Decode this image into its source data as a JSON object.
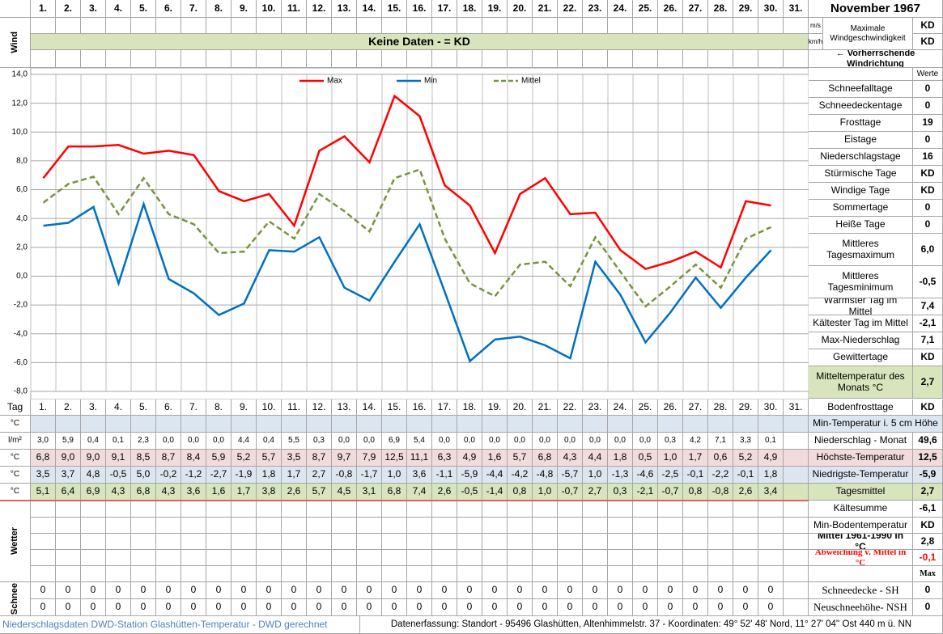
{
  "header": {
    "title": "November 1967",
    "day_label": "Tag"
  },
  "wind": {
    "label": "Wind",
    "banner": "Keine Daten -  = KD",
    "units": [
      "m/s",
      "km/h"
    ],
    "max_label": "Maximale Windgeschwindigkeit",
    "max_values": [
      "KD",
      "KD"
    ],
    "direction": "← Vorherrschende Windrichtung"
  },
  "chart_data": {
    "type": "line",
    "categories": [
      "1.",
      "2.",
      "3.",
      "4.",
      "5.",
      "6.",
      "7.",
      "8.",
      "9.",
      "10.",
      "11.",
      "12.",
      "13.",
      "14.",
      "15.",
      "16.",
      "17.",
      "18.",
      "19.",
      "20.",
      "21.",
      "22.",
      "23.",
      "24.",
      "25.",
      "26.",
      "27.",
      "28.",
      "29.",
      "30.",
      "31."
    ],
    "series": [
      {
        "name": "Max",
        "color": "#ff0000",
        "dashed": false,
        "values": [
          6.8,
          9.0,
          9.0,
          9.1,
          8.5,
          8.7,
          8.4,
          5.9,
          5.2,
          5.7,
          3.5,
          8.7,
          9.7,
          7.9,
          12.5,
          11.1,
          6.3,
          4.9,
          1.6,
          5.7,
          6.8,
          4.3,
          4.4,
          1.8,
          0.5,
          1.0,
          1.7,
          0.6,
          5.2,
          4.9,
          null
        ],
        "value_labels": [
          "6,8",
          "9,0",
          "9,0",
          "9,1",
          "8,5",
          "8,7",
          "8,4",
          "5,9",
          "5,2",
          "5,7",
          "3,5",
          "8,7",
          "9,7",
          "7,9",
          "12,5",
          "11,1",
          "6,3",
          "4,9",
          "1,6",
          "5,7",
          "6,8",
          "4,3",
          "4,4",
          "1,8",
          "0,5",
          "1,0",
          "1,7",
          "0,6",
          "5,2",
          "4,9",
          null
        ]
      },
      {
        "name": "Min",
        "color": "#0070c0",
        "dashed": false,
        "values": [
          3.5,
          3.7,
          4.8,
          -0.5,
          5.0,
          -0.2,
          -1.2,
          -2.7,
          -1.9,
          1.8,
          1.7,
          2.7,
          -0.8,
          -1.7,
          1.0,
          3.6,
          -1.1,
          -5.9,
          -4.4,
          -4.2,
          -4.8,
          -5.7,
          1.0,
          -1.3,
          -4.6,
          -2.5,
          -0.1,
          -2.2,
          -0.1,
          1.8,
          null
        ],
        "value_labels": [
          "3,5",
          "3,7",
          "4,8",
          "-0,5",
          "5,0",
          "-0,2",
          "-1,2",
          "-2,7",
          "-1,9",
          "1,8",
          "1,7",
          "2,7",
          "-0,8",
          "-1,7",
          "1,0",
          "3,6",
          "-1,1",
          "-5,9",
          "-4,4",
          "-4,2",
          "-4,8",
          "-5,7",
          "1,0",
          "-1,3",
          "-4,6",
          "-2,5",
          "-0,1",
          "-2,2",
          "-0,1",
          "1,8",
          null
        ]
      },
      {
        "name": "Mittel",
        "color": "#77933c",
        "dashed": true,
        "values": [
          5.1,
          6.4,
          6.9,
          4.3,
          6.8,
          4.3,
          3.6,
          1.6,
          1.7,
          3.8,
          2.6,
          5.7,
          4.5,
          3.1,
          6.8,
          7.4,
          2.6,
          -0.5,
          -1.4,
          0.8,
          1.0,
          -0.7,
          2.7,
          0.3,
          -2.1,
          -0.7,
          0.8,
          -0.8,
          2.6,
          3.4,
          null
        ],
        "value_labels": [
          "5,1",
          "6,4",
          "6,9",
          "4,3",
          "6,8",
          "4,3",
          "3,6",
          "1,6",
          "1,7",
          "3,8",
          "2,6",
          "5,7",
          "4,5",
          "3,1",
          "6,8",
          "7,4",
          "2,6",
          "-0,5",
          "-1,4",
          "0,8",
          "1,0",
          "-0,7",
          "2,7",
          "0,3",
          "-2,1",
          "-0,7",
          "0,8",
          "-0,8",
          "2,6",
          "3,4",
          null
        ]
      }
    ],
    "ylim": [
      -8,
      14
    ],
    "yticks": [
      {
        "value": 14,
        "label": "14,0"
      },
      {
        "value": 12,
        "label": "12,0"
      },
      {
        "value": 10,
        "label": "10,0"
      },
      {
        "value": 8,
        "label": "8,0"
      },
      {
        "value": 6,
        "label": "6,0"
      },
      {
        "value": 4,
        "label": "4,0"
      },
      {
        "value": 2,
        "label": "2,0"
      },
      {
        "value": 0,
        "label": "0,0"
      },
      {
        "value": -2,
        "label": "-2,0"
      },
      {
        "value": -4,
        "label": "-4,0"
      },
      {
        "value": -6,
        "label": "-6,0"
      },
      {
        "value": -8,
        "label": "-8,0"
      }
    ],
    "grid": true,
    "legend": "top"
  },
  "table": {
    "units": [
      "°C",
      "l/m²",
      "°C",
      "°C",
      "°C"
    ],
    "niederschlag": [
      "3,0",
      "5,9",
      "0,4",
      "0,1",
      "2,3",
      "0,0",
      "0,0",
      "0,0",
      "4,4",
      "0,4",
      "5,5",
      "0,3",
      "0,0",
      "0,0",
      "6,9",
      "5,4",
      "0,0",
      "0,0",
      "0,0",
      "0,0",
      "0,0",
      "0,0",
      "0,0",
      "0,0",
      "0,0",
      "0,3",
      "4,2",
      "7,1",
      "3,3",
      "0,1",
      null
    ]
  },
  "stats_header": "Werte",
  "stats": [
    {
      "label": "Schneefalltage",
      "value": "0"
    },
    {
      "label": "Schneedeckentage",
      "value": "0"
    },
    {
      "label": "Frosttage",
      "value": "19"
    },
    {
      "label": "Eistage",
      "value": "0"
    },
    {
      "label": "Niederschlagstage",
      "value": "16"
    },
    {
      "label": "Stürmische Tage",
      "value": "KD"
    },
    {
      "label": "Windige Tage",
      "value": "KD"
    },
    {
      "label": "Sommertage",
      "value": "0"
    },
    {
      "label": "Heiße Tage",
      "value": "0"
    },
    {
      "label": "Mittleres Tagesmaximum",
      "value": "6,0"
    },
    {
      "label": "Mittleres Tagesminimum",
      "value": "-0,5"
    },
    {
      "label": "Wärmster Tag im Mittel",
      "value": "7,4"
    },
    {
      "label": "Kältester Tag im Mittel",
      "value": "-2,1"
    },
    {
      "label": "Max-Niederschlag",
      "value": "7,1"
    },
    {
      "label": "Gewittertage",
      "value": "KD"
    },
    {
      "label": "Mitteltemperatur des Monats °C",
      "value": "2,7"
    }
  ],
  "summary": [
    {
      "label": "Bodenfrosttage",
      "value": "KD"
    },
    {
      "label": "Min-Temperatur i. 5 cm Höhe"
    },
    {
      "label": "Niederschlag - Monat",
      "value": "49,6"
    },
    {
      "label": "Höchste-Temperatur",
      "value": "12,5"
    },
    {
      "label": "Niedrigste-Temperatur",
      "value": "-5,9"
    },
    {
      "label": "Tagesmittel",
      "value": "2,7"
    },
    {
      "label": "Kältesumme",
      "value": "-6,1"
    },
    {
      "label": "Min-Bodentemperatur",
      "value": "KD"
    },
    {
      "label": "Mittel 1961-1990 in °C",
      "value": "2,8"
    },
    {
      "label": "Abweichung v. Mittel in °C",
      "value": "-0,1"
    }
  ],
  "wetter": {
    "label": "Wetter"
  },
  "schnee": {
    "label": "Schnee",
    "max_header": "Max",
    "sh": [
      0,
      0,
      0,
      0,
      0,
      0,
      0,
      0,
      0,
      0,
      0,
      0,
      0,
      0,
      0,
      0,
      0,
      0,
      0,
      0,
      0,
      0,
      0,
      0,
      0,
      0,
      0,
      0,
      0,
      0,
      null
    ],
    "nsh": [
      0,
      0,
      0,
      0,
      0,
      0,
      0,
      0,
      0,
      0,
      0,
      0,
      0,
      0,
      0,
      0,
      0,
      0,
      0,
      0,
      0,
      0,
      0,
      0,
      0,
      0,
      0,
      0,
      0,
      0,
      null
    ],
    "summary": [
      {
        "label": "Schneedecke -  SH",
        "value": "0"
      },
      {
        "label": "Neuschneehöhe- NSH",
        "value": "0"
      }
    ]
  },
  "footer": {
    "left": "Niederschlagsdaten DWD-Station Glashütten-Temperatur -  DWD gerechnet",
    "right": "Datenerfassung: Standort -  95496  Glashütten, Altenhimmelstr. 37 - Koordinaten:  49° 52' 48' Nord,   11° 27' 04'' Ost   440 m ü. NN"
  }
}
